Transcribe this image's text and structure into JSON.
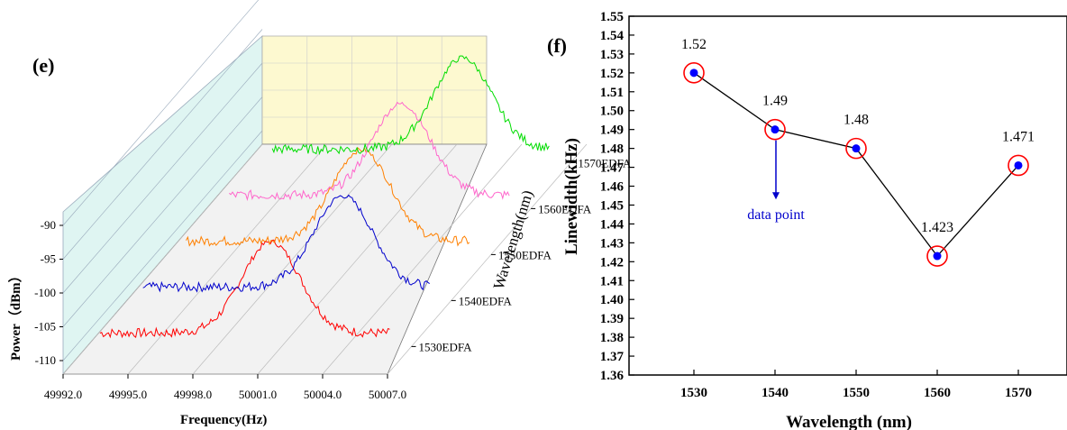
{
  "chart_data": [
    {
      "panel": "(e)",
      "type": "line",
      "xlabel": "Frequency(Hz)",
      "ylabel": "Power（dBm）",
      "zlabel": "Wavelength(nm)",
      "x_ticks": [
        "49992.0",
        "49995.0",
        "49998.0",
        "50001.0",
        "50004.0",
        "50007.0"
      ],
      "y_ticks": [
        "-90",
        "-95",
        "-100",
        "-105",
        "-110"
      ],
      "series": [
        {
          "name": "1530EDFA",
          "color": "#ff0000",
          "center": 50000.5,
          "floor": -110.0,
          "peak": -96.5
        },
        {
          "name": "1540EDFA",
          "color": "#0000cc",
          "center": 50002.0,
          "floor": -110.0,
          "peak": -96.5
        },
        {
          "name": "1550EDFA",
          "color": "#ff8000",
          "center": 50001.0,
          "floor": -110.0,
          "peak": -96.5
        },
        {
          "name": "1560EDFA",
          "color": "#ff66cc",
          "center": 50001.0,
          "floor": -110.0,
          "peak": -96.5
        },
        {
          "name": "1570EDFA",
          "color": "#00dd00",
          "center": 50002.0,
          "floor": -110.0,
          "peak": -96.5
        }
      ]
    },
    {
      "panel": "(f)",
      "type": "scatter",
      "xlabel": "Wavelength (nm)",
      "ylabel": "Linewidth(kHz)",
      "x": [
        1530,
        1540,
        1550,
        1560,
        1570
      ],
      "y": [
        1.52,
        1.49,
        1.48,
        1.423,
        1.471
      ],
      "data_labels": [
        "1.52",
        "1.49",
        "1.48",
        "1.423",
        "1.471"
      ],
      "x_ticks": [
        "1530",
        "1540",
        "1550",
        "1560",
        "1570"
      ],
      "y_ticks": [
        "1.36",
        "1.37",
        "1.38",
        "1.39",
        "1.40",
        "1.41",
        "1.42",
        "1.43",
        "1.44",
        "1.45",
        "1.46",
        "1.47",
        "1.48",
        "1.49",
        "1.50",
        "1.51",
        "1.52",
        "1.53",
        "1.54",
        "1.55"
      ],
      "xlim": [
        1522,
        1576
      ],
      "ylim": [
        1.36,
        1.55
      ],
      "annotation": "data point",
      "colors": {
        "point": "#0000ff",
        "ring": "#ff0000",
        "line": "#000000",
        "annotation": "#0000cc"
      }
    }
  ]
}
